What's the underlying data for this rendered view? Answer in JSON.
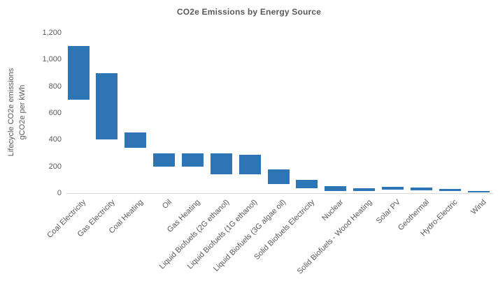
{
  "chart_data": {
    "type": "bar",
    "subtype": "floating-column-range",
    "title": "CO2e Emissions by Energy Source",
    "y_axis": {
      "title_line1": "Lifecycle CO2e emissions",
      "title_line2": "gCO2e per kWh",
      "ylim": [
        0,
        1200
      ],
      "tick_values": [
        0,
        200,
        400,
        600,
        800,
        1000,
        1200
      ],
      "tick_labels": [
        "0",
        "200",
        "400",
        "600",
        "800",
        "1,000",
        "1,200"
      ]
    },
    "categories": [
      "Coal Electricity",
      "Gas Electricity",
      "Coal Heating",
      "Oil",
      "Gas Heating",
      "Liquid Biofuels (2G ethanol)",
      "Liquid Biofuels (1G ethanol)",
      "Liquid Biofuels (3G algae oil)",
      "Solid Biofuels Electricity",
      "Nuclear",
      "Solid Biofuels - Wood Heating",
      "Solar PV",
      "Geothermal",
      "Hydro-Electric",
      "Wind"
    ],
    "low": [
      700,
      400,
      340,
      200,
      200,
      140,
      140,
      70,
      35,
      15,
      15,
      25,
      20,
      15,
      5
    ],
    "high": [
      1100,
      900,
      455,
      300,
      300,
      300,
      285,
      180,
      100,
      50,
      35,
      45,
      40,
      30,
      15
    ],
    "bar_color": "#2e75b6",
    "text_color": "#595959",
    "axis_line_color": "#d9d9d9",
    "legend": "none",
    "grid": "off",
    "x_label_rotation_deg": 45
  }
}
